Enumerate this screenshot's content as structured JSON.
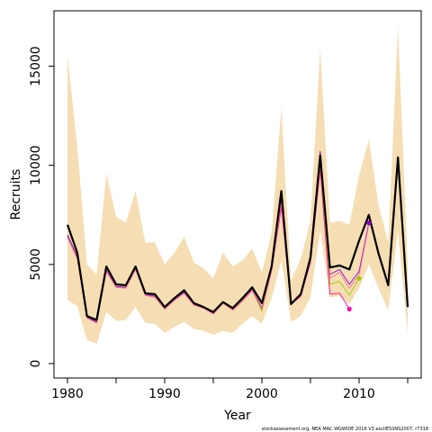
{
  "chart_data": {
    "type": "line",
    "title": "",
    "xlabel": "Year",
    "ylabel": "Recruits",
    "xlim": [
      1980,
      2015
    ],
    "ylim": [
      0,
      17000
    ],
    "grid": false,
    "legend": "none",
    "x_ticks": [
      1980,
      1990,
      2000,
      2010
    ],
    "x_tick_labels": [
      "1980",
      "1990",
      "2000",
      "2010"
    ],
    "y_ticks": [
      0,
      5000,
      10000,
      15000
    ],
    "y_tick_labels": [
      "0",
      "5000",
      "10000",
      "15000"
    ],
    "footnote": "stockassessment.org, NEA MAC WGWIDE 2016 V3 exclIESSNS2007, r7318",
    "colors": {
      "band": "#f5deb3",
      "main": "#000000",
      "retro_magenta": "#ff00aa",
      "retro_yellowgreen": "#99cc00",
      "retro_purple": "#8800cc",
      "retro_pink": "#ff6699"
    },
    "confidence_band": {
      "x": [
        1980,
        1981,
        1982,
        1983,
        1984,
        1985,
        1986,
        1987,
        1988,
        1989,
        1990,
        1991,
        1992,
        1993,
        1994,
        1995,
        1996,
        1997,
        1998,
        1999,
        2000,
        2001,
        2002,
        2003,
        2004,
        2005,
        2006,
        2007,
        2008,
        2009,
        2010,
        2011,
        2012,
        2013,
        2014,
        2015
      ],
      "lower": [
        3200,
        2900,
        1200,
        1000,
        2600,
        2150,
        2200,
        2850,
        2050,
        2000,
        1550,
        1850,
        2100,
        1750,
        1650,
        1450,
        1650,
        1550,
        2000,
        2400,
        2000,
        3300,
        5200,
        2100,
        2400,
        3350,
        6700,
        3350,
        3400,
        3000,
        3800,
        5000,
        3800,
        2700,
        6700,
        1500
      ],
      "upper": [
        15500,
        11000,
        5000,
        4500,
        9600,
        7400,
        7100,
        8700,
        6100,
        6100,
        5000,
        5600,
        6400,
        5100,
        4800,
        4300,
        5600,
        4900,
        5200,
        5800,
        4600,
        6600,
        12900,
        4200,
        5300,
        7200,
        15900,
        7100,
        7200,
        7000,
        9500,
        11300,
        8000,
        6100,
        17000,
        5000
      ]
    },
    "series": [
      {
        "color": "#000000",
        "x": [
          1980,
          1981,
          1982,
          1983,
          1984,
          1985,
          1986,
          1987,
          1988,
          1989,
          1990,
          1991,
          1992,
          1993,
          1994,
          1995,
          1996,
          1997,
          1998,
          1999,
          2000,
          2001,
          2002,
          2003,
          2004,
          2005,
          2006,
          2007,
          2008,
          2009,
          2010,
          2011,
          2012,
          2013,
          2014,
          2015
        ],
        "values": [
          7000,
          5600,
          2400,
          2200,
          4900,
          4000,
          3950,
          4900,
          3550,
          3500,
          2850,
          3300,
          3700,
          3050,
          2850,
          2600,
          3100,
          2800,
          3300,
          3850,
          3050,
          4900,
          8700,
          3000,
          3500,
          5350,
          10500,
          4850,
          4950,
          4750,
          6200,
          7500,
          5550,
          3950,
          10400,
          2850
        ]
      },
      {
        "color": "#ff00aa",
        "x": [
          1980,
          1981,
          1982,
          1983,
          1984,
          1985,
          1986,
          1987,
          1988,
          1989,
          1990,
          1991,
          1992,
          1993,
          1994,
          1995,
          1996,
          1997,
          1998,
          1999,
          2000,
          2001,
          2002,
          2003,
          2004,
          2005,
          2006,
          2007,
          2008,
          2009
        ],
        "values": [
          6450,
          5350,
          2350,
          2100,
          4700,
          3850,
          3850,
          4750,
          3450,
          3350,
          2750,
          3200,
          3550,
          2950,
          2800,
          2500,
          3050,
          2700,
          3150,
          3700,
          2700,
          4700,
          7900,
          3000,
          3400,
          5100,
          9800,
          3500,
          3550,
          2750
        ]
      },
      {
        "color": "#99cc00",
        "x": [
          1980,
          1981,
          1982,
          1983,
          1984,
          1985,
          1986,
          1987,
          1988,
          1989,
          1990,
          1991,
          1992,
          1993,
          1994,
          1995,
          1996,
          1997,
          1998,
          1999,
          2000,
          2001,
          2002,
          2003,
          2004,
          2005,
          2006,
          2007,
          2008,
          2009,
          2010
        ],
        "values": [
          6400,
          5300,
          2300,
          2050,
          4650,
          3850,
          3850,
          4750,
          3450,
          3350,
          2750,
          3200,
          3600,
          2950,
          2800,
          2500,
          3050,
          2700,
          3200,
          3700,
          2650,
          4750,
          8200,
          3000,
          3500,
          5200,
          10100,
          4000,
          4150,
          3450,
          4300
        ]
      },
      {
        "color": "#8800cc",
        "x": [
          1980,
          1981,
          1982,
          1983,
          1984,
          1985,
          1986,
          1987,
          1988,
          1989,
          1990,
          1991,
          1992,
          1993,
          1994,
          1995,
          1996,
          1997,
          1998,
          1999,
          2000,
          2001,
          2002,
          2003,
          2004,
          2005,
          2006,
          2007,
          2008,
          2009,
          2010,
          2011
        ],
        "values": [
          6500,
          5400,
          2350,
          2100,
          4700,
          3900,
          3850,
          4800,
          3500,
          3400,
          2800,
          3250,
          3600,
          3000,
          2800,
          2550,
          3100,
          2750,
          3250,
          3750,
          2800,
          4800,
          8300,
          3050,
          3550,
          5300,
          10700,
          4500,
          4750,
          4000,
          4650,
          7100
        ]
      },
      {
        "color": "#ff6699",
        "x": [
          1980,
          1981,
          1982,
          1983,
          1984,
          1985,
          1986,
          1987,
          1988,
          1989,
          1990,
          1991,
          1992,
          1993,
          1994,
          1995,
          1996,
          1997,
          1998,
          1999,
          2000,
          2001,
          2002,
          2003,
          2004,
          2005,
          2006,
          2007,
          2008,
          2009,
          2010,
          2011
        ],
        "values": [
          6350,
          5300,
          2300,
          2050,
          4650,
          3850,
          3800,
          4750,
          3450,
          3350,
          2750,
          3200,
          3550,
          2950,
          2800,
          2500,
          3050,
          2700,
          3150,
          3700,
          2750,
          4700,
          8100,
          3000,
          3450,
          5200,
          10300,
          4300,
          4600,
          3800,
          4500,
          7000
        ]
      }
    ],
    "endpoints": [
      {
        "x": 2009,
        "y": 2750,
        "color": "#ff00aa"
      },
      {
        "x": 2010,
        "y": 4300,
        "color": "#99cc00"
      },
      {
        "x": 2011,
        "y": 7100,
        "color": "#8800cc"
      }
    ]
  }
}
